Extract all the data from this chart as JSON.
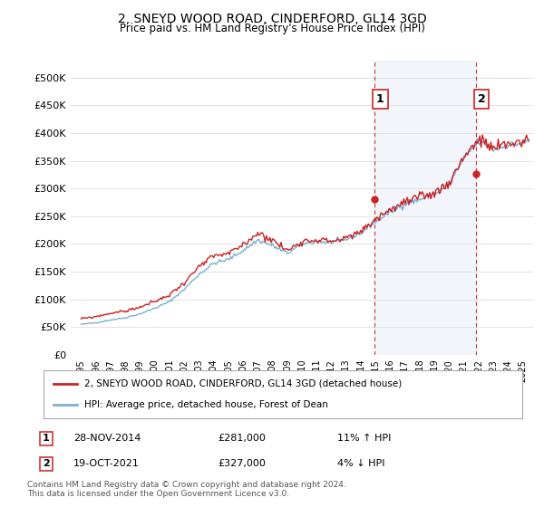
{
  "title": "2, SNEYD WOOD ROAD, CINDERFORD, GL14 3GD",
  "subtitle": "Price paid vs. HM Land Registry's House Price Index (HPI)",
  "background_color": "#ffffff",
  "plot_bg_color": "#ffffff",
  "grid_color": "#dddddd",
  "hpi_color": "#7ab0d4",
  "price_color": "#cc2222",
  "dashed_color": "#cc3333",
  "marker1_x": 2014.92,
  "marker1_label": "1",
  "marker1_date": "28-NOV-2014",
  "marker1_price": "£281,000",
  "marker1_hpi": "11% ↑ HPI",
  "marker2_x": 2021.8,
  "marker2_label": "2",
  "marker2_date": "19-OCT-2021",
  "marker2_price": "£327,000",
  "marker2_hpi": "4% ↓ HPI",
  "legend_line1": "2, SNEYD WOOD ROAD, CINDERFORD, GL14 3GD (detached house)",
  "legend_line2": "HPI: Average price, detached house, Forest of Dean",
  "footer": "Contains HM Land Registry data © Crown copyright and database right 2024.\nThis data is licensed under the Open Government Licence v3.0.",
  "ylim": [
    0,
    530000
  ],
  "yticks": [
    0,
    50000,
    100000,
    150000,
    200000,
    250000,
    300000,
    350000,
    400000,
    450000,
    500000
  ],
  "ytick_labels": [
    "£0",
    "£50K",
    "£100K",
    "£150K",
    "£200K",
    "£250K",
    "£300K",
    "£350K",
    "£400K",
    "£450K",
    "£500K"
  ],
  "xlim": [
    1994.3,
    2025.7
  ],
  "xticks": [
    1995,
    1996,
    1997,
    1998,
    1999,
    2000,
    2001,
    2002,
    2003,
    2004,
    2005,
    2006,
    2007,
    2008,
    2009,
    2010,
    2011,
    2012,
    2013,
    2014,
    2015,
    2016,
    2017,
    2018,
    2019,
    2020,
    2021,
    2022,
    2023,
    2024,
    2025
  ],
  "hpi_annual": {
    "1995": 55000,
    "1996": 58000,
    "1997": 63000,
    "1998": 67000,
    "1999": 74000,
    "2000": 84000,
    "2001": 96000,
    "2002": 118000,
    "2003": 145000,
    "2004": 165000,
    "2005": 172000,
    "2006": 188000,
    "2007": 207000,
    "2008": 197000,
    "2009": 183000,
    "2010": 200000,
    "2011": 204000,
    "2012": 203000,
    "2013": 208000,
    "2014": 220000,
    "2015": 240000,
    "2016": 258000,
    "2017": 272000,
    "2018": 280000,
    "2019": 290000,
    "2020": 308000,
    "2021": 355000,
    "2022": 385000,
    "2023": 370000,
    "2024": 378000,
    "2025": 382000
  },
  "prop_annual": {
    "1995": 65000,
    "1996": 69000,
    "1997": 75000,
    "1998": 79000,
    "1999": 86000,
    "2000": 96000,
    "2001": 108000,
    "2002": 130000,
    "2003": 158000,
    "2004": 178000,
    "2005": 182000,
    "2006": 198000,
    "2007": 220000,
    "2008": 207000,
    "2009": 188000,
    "2010": 205000,
    "2011": 208000,
    "2012": 205000,
    "2013": 210000,
    "2014": 222000,
    "2015": 245000,
    "2016": 262000,
    "2017": 275000,
    "2018": 283000,
    "2019": 292000,
    "2020": 310000,
    "2021": 358000,
    "2022": 388000,
    "2023": 372000,
    "2024": 380000,
    "2025": 385000
  }
}
